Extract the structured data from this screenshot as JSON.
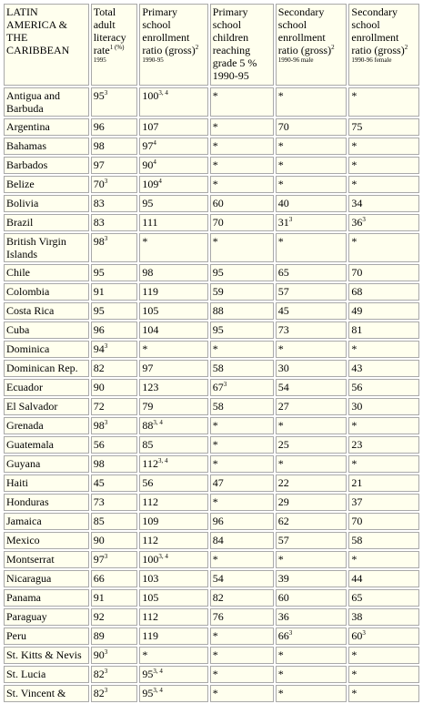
{
  "columns": [
    {
      "label": "LATIN AMERICA & THE CARIBBEAN",
      "sup": "",
      "sub": ""
    },
    {
      "label": "Total adult literacy rate",
      "sup": "1 (%)",
      "sub": "1995"
    },
    {
      "label": "Primary school enrollment ratio (gross)",
      "sup": "2",
      "sub": "1990-95"
    },
    {
      "label": "Primary school children reaching grade 5 % 1990-95",
      "sup": "",
      "sub": ""
    },
    {
      "label": "Secondary school enrollment ratio (gross)",
      "sup": "2",
      "sub": "1990-96 male"
    },
    {
      "label": "Secondary school enrollment ratio (gross)",
      "sup": "2",
      "sub": "1990-96 female"
    }
  ],
  "rows": [
    {
      "country": "Antigua and Barbuda",
      "lit": "95",
      "lit_sup": "3",
      "prim": "100",
      "prim_sup": "3, 4",
      "grade5": "*",
      "sec_m": "*",
      "sec_f": "*"
    },
    {
      "country": "Argentina",
      "lit": "96",
      "lit_sup": "",
      "prim": "107",
      "prim_sup": "",
      "grade5": "*",
      "sec_m": "70",
      "sec_f": "75"
    },
    {
      "country": "Bahamas",
      "lit": "98",
      "lit_sup": "",
      "prim": "97",
      "prim_sup": "4",
      "grade5": "*",
      "sec_m": "*",
      "sec_f": "*"
    },
    {
      "country": "Barbados",
      "lit": "97",
      "lit_sup": "",
      "prim": "90",
      "prim_sup": "4",
      "grade5": "*",
      "sec_m": "*",
      "sec_f": "*"
    },
    {
      "country": "Belize",
      "lit": "70",
      "lit_sup": "3",
      "prim": "109",
      "prim_sup": "4",
      "grade5": "*",
      "sec_m": "*",
      "sec_f": "*"
    },
    {
      "country": "Bolivia",
      "lit": "83",
      "lit_sup": "",
      "prim": "95",
      "prim_sup": "",
      "grade5": "60",
      "sec_m": "40",
      "sec_f": "34"
    },
    {
      "country": "Brazil",
      "lit": "83",
      "lit_sup": "",
      "prim": "111",
      "prim_sup": "",
      "grade5": "70",
      "sec_m": "31",
      "sec_m_sup": "3",
      "sec_f": "36",
      "sec_f_sup": "3"
    },
    {
      "country": "British Virgin Islands",
      "lit": "98",
      "lit_sup": "3",
      "prim": "*",
      "prim_sup": "",
      "grade5": "*",
      "sec_m": "*",
      "sec_f": "*"
    },
    {
      "country": "Chile",
      "lit": "95",
      "lit_sup": "",
      "prim": "98",
      "prim_sup": "",
      "grade5": "95",
      "sec_m": "65",
      "sec_f": "70"
    },
    {
      "country": "Colombia",
      "lit": "91",
      "lit_sup": "",
      "prim": "119",
      "prim_sup": "",
      "grade5": "59",
      "sec_m": "57",
      "sec_f": "68"
    },
    {
      "country": "Costa Rica",
      "lit": "95",
      "lit_sup": "",
      "prim": "105",
      "prim_sup": "",
      "grade5": "88",
      "sec_m": "45",
      "sec_f": "49"
    },
    {
      "country": "Cuba",
      "lit": "96",
      "lit_sup": "",
      "prim": "104",
      "prim_sup": "",
      "grade5": "95",
      "sec_m": "73",
      "sec_f": "81"
    },
    {
      "country": "Dominica",
      "lit": "94",
      "lit_sup": "3",
      "prim": "*",
      "prim_sup": "",
      "grade5": "*",
      "sec_m": "*",
      "sec_f": "*"
    },
    {
      "country": "Dominican Rep.",
      "lit": "82",
      "lit_sup": "",
      "prim": "97",
      "prim_sup": "",
      "grade5": "58",
      "sec_m": "30",
      "sec_f": "43"
    },
    {
      "country": "Ecuador",
      "lit": "90",
      "lit_sup": "",
      "prim": "123",
      "prim_sup": "",
      "grade5": "67",
      "grade5_sup": "3",
      "sec_m": "54",
      "sec_f": "56"
    },
    {
      "country": "El Salvador",
      "lit": "72",
      "lit_sup": "",
      "prim": "79",
      "prim_sup": "",
      "grade5": "58",
      "sec_m": "27",
      "sec_f": "30"
    },
    {
      "country": "Grenada",
      "lit": "98",
      "lit_sup": "3",
      "prim": "88",
      "prim_sup": "3, 4",
      "grade5": "*",
      "sec_m": "*",
      "sec_f": "*"
    },
    {
      "country": "Guatemala",
      "lit": "56",
      "lit_sup": "",
      "prim": "85",
      "prim_sup": "",
      "grade5": "*",
      "sec_m": "25",
      "sec_f": "23"
    },
    {
      "country": "Guyana",
      "lit": "98",
      "lit_sup": "",
      "prim": "112",
      "prim_sup": "3, 4",
      "grade5": "*",
      "sec_m": "*",
      "sec_f": "*"
    },
    {
      "country": "Haiti",
      "lit": "45",
      "lit_sup": "",
      "prim": "56",
      "prim_sup": "",
      "grade5": "47",
      "sec_m": "22",
      "sec_f": "21"
    },
    {
      "country": "Honduras",
      "lit": "73",
      "lit_sup": "",
      "prim": "112",
      "prim_sup": "",
      "grade5": "*",
      "sec_m": "29",
      "sec_f": "37"
    },
    {
      "country": "Jamaica",
      "lit": "85",
      "lit_sup": "",
      "prim": "109",
      "prim_sup": "",
      "grade5": "96",
      "sec_m": "62",
      "sec_f": "70"
    },
    {
      "country": "Mexico",
      "lit": "90",
      "lit_sup": "",
      "prim": "112",
      "prim_sup": "",
      "grade5": "84",
      "sec_m": "57",
      "sec_f": "58"
    },
    {
      "country": "Montserrat",
      "lit": "97",
      "lit_sup": "3",
      "prim": "100",
      "prim_sup": "3, 4",
      "grade5": "*",
      "sec_m": "*",
      "sec_f": "*"
    },
    {
      "country": "Nicaragua",
      "lit": "66",
      "lit_sup": "",
      "prim": "103",
      "prim_sup": "",
      "grade5": "54",
      "sec_m": "39",
      "sec_f": "44"
    },
    {
      "country": "Panama",
      "lit": "91",
      "lit_sup": "",
      "prim": "105",
      "prim_sup": "",
      "grade5": "82",
      "sec_m": "60",
      "sec_f": "65"
    },
    {
      "country": "Paraguay",
      "lit": "92",
      "lit_sup": "",
      "prim": "112",
      "prim_sup": "",
      "grade5": "76",
      "sec_m": "36",
      "sec_f": "38"
    },
    {
      "country": "Peru",
      "lit": "89",
      "lit_sup": "",
      "prim": "119",
      "prim_sup": "",
      "grade5": "*",
      "sec_m": "66",
      "sec_m_sup": "3",
      "sec_f": "60",
      "sec_f_sup": "3"
    },
    {
      "country": "St. Kitts & Nevis",
      "lit": "90",
      "lit_sup": "3",
      "prim": "*",
      "prim_sup": "",
      "grade5": "*",
      "sec_m": "*",
      "sec_f": "*"
    },
    {
      "country": "St. Lucia",
      "lit": "82",
      "lit_sup": "3",
      "prim": "95",
      "prim_sup": "3, 4",
      "grade5": "*",
      "sec_m": "*",
      "sec_f": "*"
    },
    {
      "country": "St. Vincent &",
      "lit": "82",
      "lit_sup": "3",
      "prim": "95",
      "prim_sup": "3, 4",
      "grade5": "*",
      "sec_m": "*",
      "sec_f": "*"
    }
  ]
}
